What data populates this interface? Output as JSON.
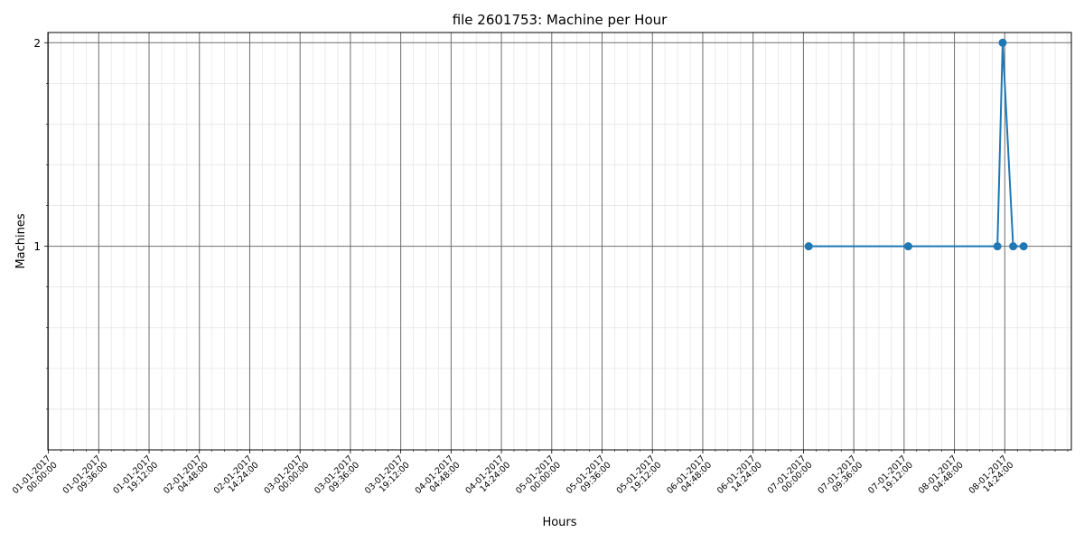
{
  "chart_data": {
    "type": "line",
    "title": "file 2601753: Machine per Hour",
    "xlabel": "Hours",
    "ylabel": "Machines",
    "x_unit": "hours since 01-01-2017 00:00",
    "xlim": [
      -0.1,
      195.1
    ],
    "ylim": [
      0.0,
      2.05
    ],
    "major_x_ticks": [
      {
        "x": 0.0,
        "date": "01-01-2017",
        "time": "00:00:00"
      },
      {
        "x": 9.6,
        "date": "01-01-2017",
        "time": "09:36:00"
      },
      {
        "x": 19.2,
        "date": "01-01-2017",
        "time": "19:12:00"
      },
      {
        "x": 28.8,
        "date": "02-01-2017",
        "time": "04:48:00"
      },
      {
        "x": 38.4,
        "date": "02-01-2017",
        "time": "14:24:00"
      },
      {
        "x": 48.0,
        "date": "03-01-2017",
        "time": "00:00:00"
      },
      {
        "x": 57.6,
        "date": "03-01-2017",
        "time": "09:36:00"
      },
      {
        "x": 67.2,
        "date": "03-01-2017",
        "time": "19:12:00"
      },
      {
        "x": 76.8,
        "date": "04-01-2017",
        "time": "04:48:00"
      },
      {
        "x": 86.4,
        "date": "04-01-2017",
        "time": "14:24:00"
      },
      {
        "x": 96.0,
        "date": "05-01-2017",
        "time": "00:00:00"
      },
      {
        "x": 105.6,
        "date": "05-01-2017",
        "time": "09:36:00"
      },
      {
        "x": 115.2,
        "date": "05-01-2017",
        "time": "19:12:00"
      },
      {
        "x": 124.8,
        "date": "06-01-2017",
        "time": "04:48:00"
      },
      {
        "x": 134.4,
        "date": "06-01-2017",
        "time": "14:24:00"
      },
      {
        "x": 144.0,
        "date": "07-01-2017",
        "time": "00:00:00"
      },
      {
        "x": 153.6,
        "date": "07-01-2017",
        "time": "09:36:00"
      },
      {
        "x": 163.2,
        "date": "07-01-2017",
        "time": "19:12:00"
      },
      {
        "x": 172.8,
        "date": "08-01-2017",
        "time": "04:48:00"
      },
      {
        "x": 182.4,
        "date": "08-01-2017",
        "time": "14:24:00"
      }
    ],
    "minor_x_step": 2.4,
    "major_y_ticks": [
      1,
      2
    ],
    "minor_y_step": 0.2,
    "series": [
      {
        "name": "machines",
        "color": "#1f77b4",
        "x": [
          145,
          164,
          181,
          182,
          184,
          186
        ],
        "y": [
          1,
          1,
          1,
          2,
          1,
          1
        ]
      }
    ],
    "grid": true,
    "legend": "none"
  }
}
